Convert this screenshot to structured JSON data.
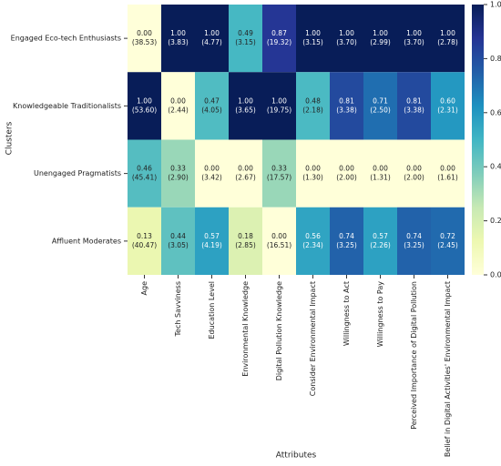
{
  "chart_data": {
    "type": "heatmap",
    "xlabel": "Attributes",
    "ylabel": "Clusters",
    "x_categories": [
      "Age",
      "Tech Savviness",
      "Education Level",
      "Environmental Knowledge",
      "Digital Pollution Knowledge",
      "Consider Environmental Impact",
      "Willingness to Act",
      "Willingness to Pay",
      "Perceived Importance of Digital Pollution",
      "Belief in Digital Activities' Environmental Impact"
    ],
    "y_categories": [
      "Engaged Eco-tech Enthusiasts",
      "Knowledgeable Traditionalists",
      "Unengaged Pragmatists",
      "Affluent Moderates"
    ],
    "values": [
      [
        0,
        1,
        1,
        0.49,
        0.87,
        1,
        1,
        1,
        1,
        1
      ],
      [
        1,
        0,
        0.47,
        1,
        1,
        0.48,
        0.81,
        0.71,
        0.81,
        0.6
      ],
      [
        0.46,
        0.33,
        0,
        0,
        0.33,
        0,
        0,
        0,
        0,
        0
      ],
      [
        0.13,
        0.44,
        0.57,
        0.18,
        0,
        0.56,
        0.74,
        0.57,
        0.74,
        0.72
      ]
    ],
    "value_labels": [
      [
        "0.00",
        "1.00",
        "1.00",
        "0.49",
        "0.87",
        "1.00",
        "1.00",
        "1.00",
        "1.00",
        "1.00"
      ],
      [
        "1.00",
        "0.00",
        "0.47",
        "1.00",
        "1.00",
        "0.48",
        "0.81",
        "0.71",
        "0.81",
        "0.60"
      ],
      [
        "0.46",
        "0.33",
        "0.00",
        "0.00",
        "0.33",
        "0.00",
        "0.00",
        "0.00",
        "0.00",
        "0.00"
      ],
      [
        "0.13",
        "0.44",
        "0.57",
        "0.18",
        "0.00",
        "0.56",
        "0.74",
        "0.57",
        "0.74",
        "0.72"
      ]
    ],
    "mean_labels": [
      [
        "(38.53)",
        "(3.83)",
        "(4.77)",
        "(3.15)",
        "(19.32)",
        "(3.15)",
        "(3.70)",
        "(2.99)",
        "(3.70)",
        "(2.78)"
      ],
      [
        "(53.60)",
        "(2.44)",
        "(4.05)",
        "(3.65)",
        "(19.75)",
        "(2.18)",
        "(3.38)",
        "(2.50)",
        "(3.38)",
        "(2.31)"
      ],
      [
        "(45.41)",
        "(2.90)",
        "(3.42)",
        "(2.67)",
        "(17.57)",
        "(1.30)",
        "(2.00)",
        "(1.31)",
        "(2.00)",
        "(1.61)"
      ],
      [
        "(40.47)",
        "(3.05)",
        "(4.19)",
        "(2.85)",
        "(16.51)",
        "(2.34)",
        "(3.25)",
        "(2.26)",
        "(3.25)",
        "(2.45)"
      ]
    ],
    "colormap": "YlGnBu",
    "zlim": [
      0,
      1
    ],
    "zticks": [
      {
        "value": 0,
        "label": "0.0"
      },
      {
        "value": 0.2,
        "label": "0.2"
      },
      {
        "value": 0.4,
        "label": "0.4"
      },
      {
        "value": 0.6,
        "label": "0.6"
      },
      {
        "value": 0.8,
        "label": "0.8"
      },
      {
        "value": 1,
        "label": "1.0"
      }
    ]
  }
}
